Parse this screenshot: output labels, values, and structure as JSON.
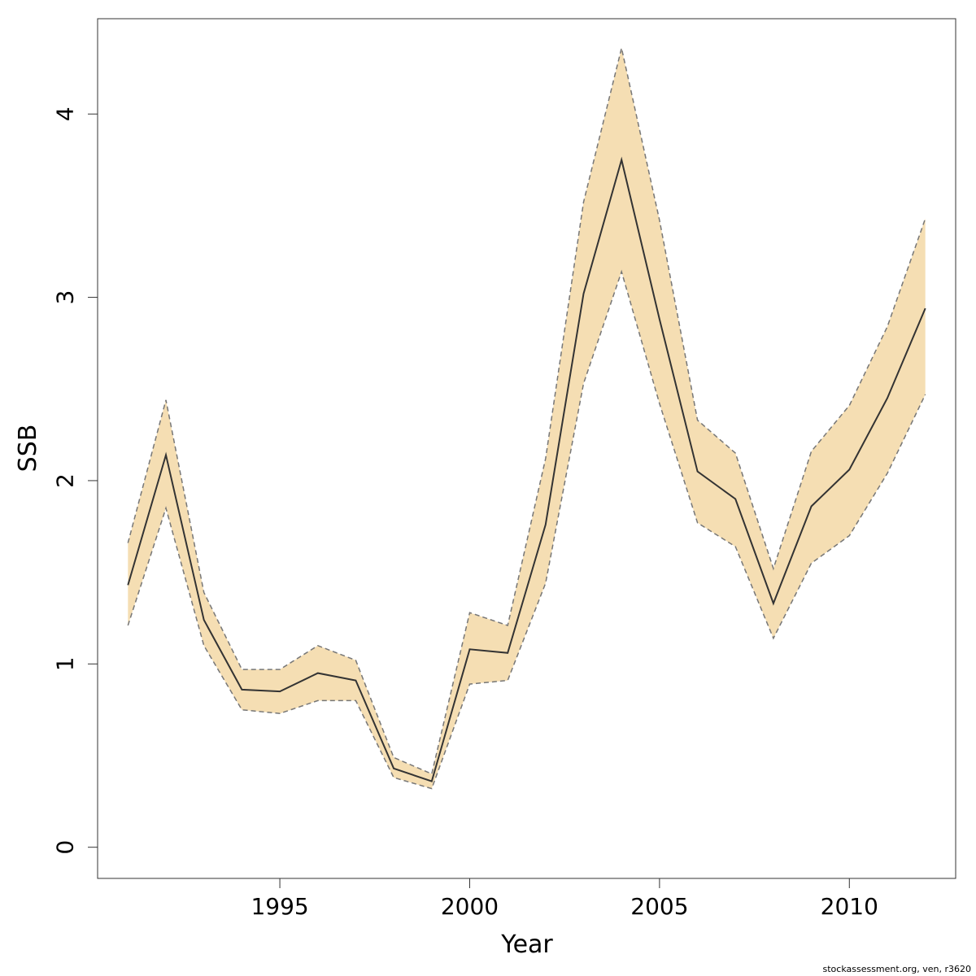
{
  "chart_data": {
    "type": "line",
    "title": "",
    "xlabel": "Year",
    "ylabel": "SSB",
    "xlim": [
      1990.2,
      2012.8
    ],
    "ylim": [
      -0.17,
      4.52
    ],
    "x_ticks": [
      1995,
      2000,
      2005,
      2010
    ],
    "y_ticks": [
      0,
      1,
      2,
      3,
      4
    ],
    "grid": false,
    "colors": {
      "band": "#F5DEB3",
      "line": "#333333",
      "bound": "#777777",
      "axis": "#333333"
    },
    "x": [
      1991,
      1992,
      1993,
      1994,
      1995,
      1996,
      1997,
      1998,
      1999,
      2000,
      2001,
      2002,
      2003,
      2004,
      2005,
      2006,
      2007,
      2008,
      2009,
      2010,
      2011,
      2012
    ],
    "series": [
      {
        "role": "estimate",
        "values": [
          1.43,
          2.14,
          1.24,
          0.86,
          0.85,
          0.95,
          0.91,
          0.43,
          0.36,
          1.08,
          1.06,
          1.76,
          3.02,
          3.75,
          2.88,
          2.05,
          1.9,
          1.33,
          1.86,
          2.06,
          2.45,
          2.94
        ]
      },
      {
        "role": "upper",
        "values": [
          1.66,
          2.44,
          1.39,
          0.97,
          0.97,
          1.1,
          1.02,
          0.49,
          0.4,
          1.28,
          1.21,
          2.12,
          3.52,
          4.36,
          3.42,
          2.33,
          2.15,
          1.52,
          2.16,
          2.41,
          2.84,
          3.43
        ]
      },
      {
        "role": "lower",
        "values": [
          1.21,
          1.85,
          1.1,
          0.75,
          0.73,
          0.8,
          0.8,
          0.38,
          0.32,
          0.89,
          0.91,
          1.44,
          2.53,
          3.14,
          2.42,
          1.77,
          1.64,
          1.14,
          1.55,
          1.7,
          2.04,
          2.47
        ]
      }
    ]
  },
  "footer": {
    "credit": "stockassessment.org, ven, r3620"
  }
}
